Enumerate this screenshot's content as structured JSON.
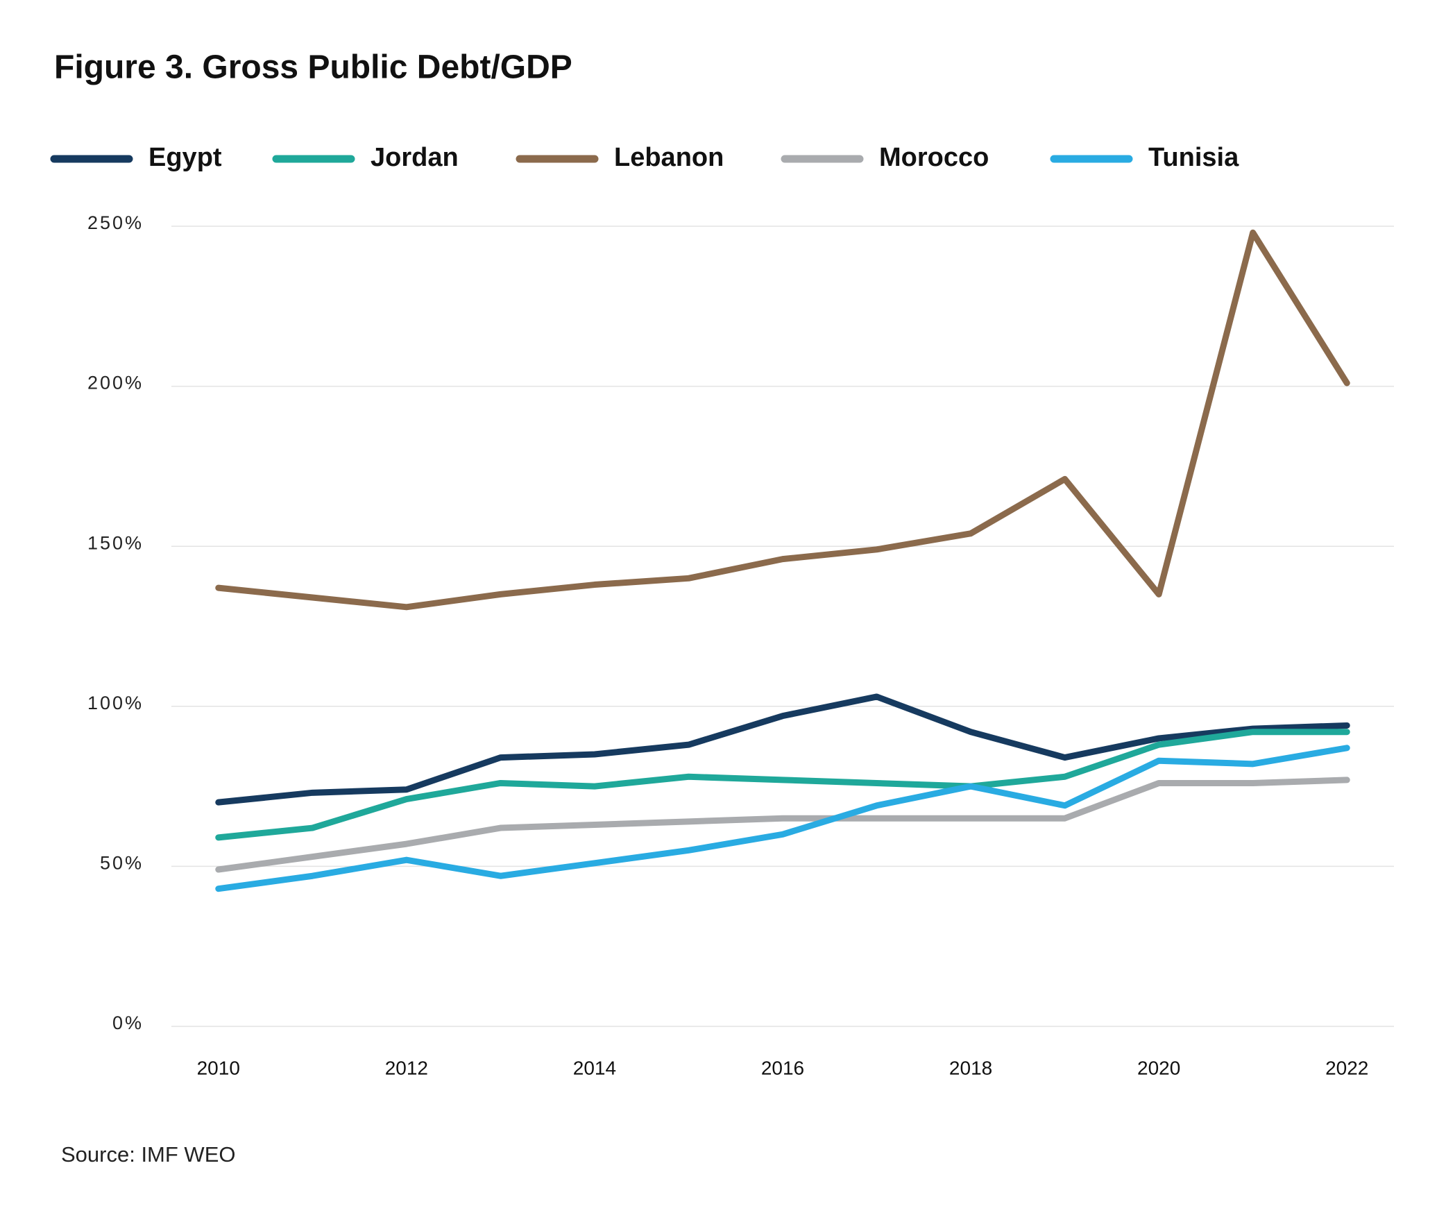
{
  "chart_data": {
    "type": "line",
    "title": "Figure 3. Gross Public Debt/GDP",
    "source": "Source: IMF WEO",
    "x": [
      2010,
      2011,
      2012,
      2013,
      2014,
      2015,
      2016,
      2017,
      2018,
      2019,
      2020,
      2021,
      2022
    ],
    "series": [
      {
        "name": "Egypt",
        "color": "#163a5f",
        "values": [
          70,
          73,
          74,
          84,
          85,
          88,
          97,
          103,
          92,
          84,
          90,
          93,
          94
        ]
      },
      {
        "name": "Jordan",
        "color": "#1fa89a",
        "values": [
          59,
          62,
          71,
          76,
          75,
          78,
          77,
          76,
          75,
          78,
          88,
          92,
          92
        ]
      },
      {
        "name": "Lebanon",
        "color": "#8b6a4c",
        "values": [
          137,
          134,
          131,
          135,
          138,
          140,
          146,
          149,
          154,
          171,
          135,
          248,
          201
        ]
      },
      {
        "name": "Morocco",
        "color": "#a9abae",
        "values": [
          49,
          53,
          57,
          62,
          63,
          64,
          65,
          65,
          65,
          65,
          76,
          76,
          77
        ]
      },
      {
        "name": "Tunisia",
        "color": "#29abe2",
        "values": [
          43,
          47,
          52,
          47,
          51,
          55,
          60,
          69,
          75,
          69,
          83,
          82,
          87
        ]
      }
    ],
    "xlim": [
      2009.5,
      2022.5
    ],
    "xticks": [
      2010,
      2012,
      2014,
      2016,
      2018,
      2020,
      2022
    ],
    "ylim": [
      0,
      250
    ],
    "yticks": [
      {
        "value": 0,
        "label": "0%"
      },
      {
        "value": 50,
        "label": "50%"
      },
      {
        "value": 100,
        "label": "100%"
      },
      {
        "value": 150,
        "label": "150%"
      },
      {
        "value": 200,
        "label": "200%"
      },
      {
        "value": 250,
        "label": "250%"
      }
    ],
    "grid": true,
    "legend": "top"
  }
}
